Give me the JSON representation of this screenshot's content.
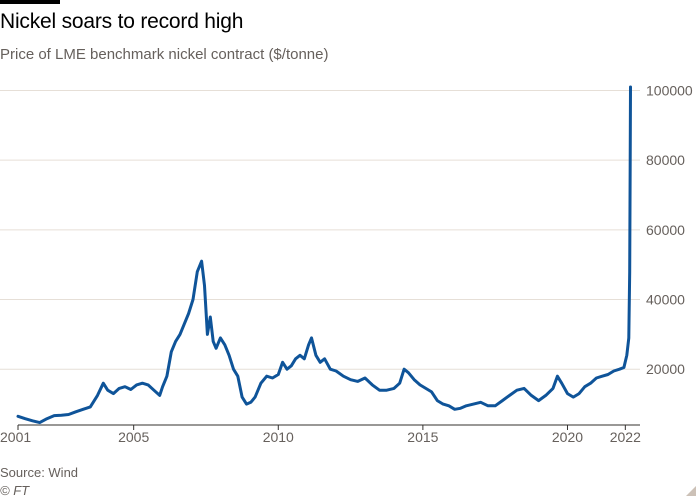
{
  "header": {
    "title": "Nickel soars to record high",
    "subtitle": "Price of LME benchmark nickel contract ($/tonne)"
  },
  "footer": {
    "source": "Source: Wind",
    "copyright": "© FT"
  },
  "colors": {
    "line": "#0f5499",
    "grid": "#e6dfd7",
    "axis": "#33302e",
    "text": "#66605c"
  },
  "chart_data": {
    "type": "line",
    "title": "Nickel soars to record high",
    "subtitle": "Price of LME benchmark nickel contract ($/tonne)",
    "xlabel": "",
    "ylabel": "",
    "xlim": [
      2001,
      2022.3
    ],
    "ylim": [
      4000,
      103000
    ],
    "x_ticks": [
      2001,
      2005,
      2010,
      2015,
      2020,
      2022
    ],
    "x_tick_labels": [
      "2001",
      "2005",
      "2010",
      "2015",
      "2020",
      "2022"
    ],
    "y_ticks": [
      20000,
      40000,
      60000,
      80000,
      100000
    ],
    "y_tick_labels": [
      "20000",
      "40000",
      "60000",
      "80000",
      "100000"
    ],
    "y_axis_side": "right",
    "grid": true,
    "series": [
      {
        "x": [
          2001.0,
          2001.25,
          2001.5,
          2001.75,
          2002.0,
          2002.25,
          2002.5,
          2002.75,
          2003.0,
          2003.25,
          2003.5,
          2003.75,
          2003.95,
          2004.1,
          2004.3,
          2004.5,
          2004.7,
          2004.9,
          2005.1,
          2005.3,
          2005.5,
          2005.7,
          2005.9,
          2006.0,
          2006.15,
          2006.3,
          2006.45,
          2006.6,
          2006.75,
          2006.9,
          2007.05,
          2007.2,
          2007.35,
          2007.45,
          2007.55,
          2007.65,
          2007.75,
          2007.85,
          2008.0,
          2008.15,
          2008.3,
          2008.45,
          2008.6,
          2008.75,
          2008.9,
          2009.05,
          2009.2,
          2009.4,
          2009.6,
          2009.8,
          2010.0,
          2010.15,
          2010.3,
          2010.45,
          2010.6,
          2010.75,
          2010.9,
          2011.05,
          2011.15,
          2011.3,
          2011.45,
          2011.6,
          2011.8,
          2012.0,
          2012.25,
          2012.5,
          2012.75,
          2013.0,
          2013.25,
          2013.5,
          2013.75,
          2014.0,
          2014.2,
          2014.35,
          2014.5,
          2014.7,
          2014.9,
          2015.1,
          2015.3,
          2015.5,
          2015.7,
          2015.9,
          2016.1,
          2016.3,
          2016.5,
          2016.75,
          2017.0,
          2017.25,
          2017.5,
          2017.75,
          2018.0,
          2018.25,
          2018.5,
          2018.75,
          2019.0,
          2019.25,
          2019.5,
          2019.65,
          2019.8,
          2020.0,
          2020.2,
          2020.4,
          2020.6,
          2020.8,
          2021.0,
          2021.2,
          2021.4,
          2021.6,
          2021.8,
          2021.95,
          2022.05,
          2022.12,
          2022.15,
          2022.17,
          2022.18
        ],
        "y": [
          6500,
          5800,
          5200,
          4700,
          5800,
          6700,
          6800,
          7000,
          7800,
          8500,
          9200,
          12500,
          16000,
          14000,
          13000,
          14500,
          15000,
          14200,
          15500,
          16000,
          15500,
          14000,
          12500,
          15000,
          18000,
          25000,
          28000,
          30000,
          33000,
          36000,
          40000,
          48000,
          51000,
          44000,
          30000,
          35000,
          28000,
          26000,
          29000,
          27000,
          24000,
          20000,
          18000,
          12000,
          10000,
          10500,
          12000,
          16000,
          18000,
          17500,
          18500,
          22000,
          20000,
          21000,
          23000,
          24000,
          23000,
          27000,
          29000,
          24000,
          22000,
          23000,
          20000,
          19500,
          18000,
          17000,
          16500,
          17500,
          15500,
          14000,
          14000,
          14500,
          16000,
          20000,
          19000,
          17000,
          15500,
          14500,
          13500,
          11000,
          10000,
          9500,
          8500,
          8800,
          9500,
          10000,
          10500,
          9500,
          9500,
          11000,
          12500,
          14000,
          14500,
          12500,
          11000,
          12500,
          14500,
          18000,
          16000,
          13000,
          12000,
          13000,
          15000,
          16000,
          17500,
          18000,
          18500,
          19500,
          20000,
          20500,
          24000,
          29000,
          48000,
          80000,
          101000
        ]
      }
    ]
  }
}
